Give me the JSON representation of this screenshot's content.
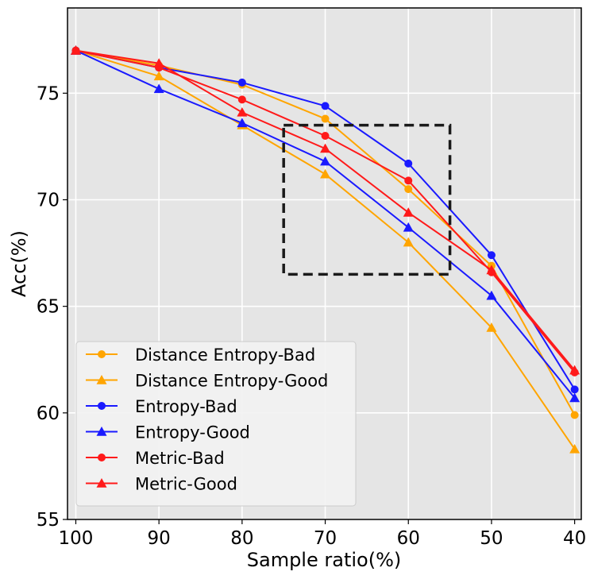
{
  "chart_data": {
    "type": "line",
    "title": "",
    "xlabel": "Sample ratio(%)",
    "ylabel": "Acc(%)",
    "x": [
      100,
      90,
      80,
      70,
      60,
      50,
      40
    ],
    "xlim": [
      101,
      39.2
    ],
    "ylim": [
      55,
      79
    ],
    "xticks": [
      100,
      90,
      80,
      70,
      60,
      50,
      40
    ],
    "yticks": [
      55,
      60,
      65,
      70,
      75
    ],
    "grid": true,
    "legend_position": "lower-left",
    "highlight_box": {
      "x_range": [
        75,
        55
      ],
      "y_range": [
        66.5,
        73.5
      ],
      "style": "dashed"
    },
    "series": [
      {
        "name": "Distance Entropy-Bad",
        "color": "#ffa500",
        "marker": "circle",
        "values": [
          77.0,
          76.3,
          75.4,
          73.8,
          70.5,
          66.9,
          59.9
        ]
      },
      {
        "name": "Distance Entropy-Good",
        "color": "#ffa500",
        "marker": "triangle",
        "values": [
          77.0,
          75.8,
          73.5,
          71.2,
          68.0,
          64.0,
          58.3
        ]
      },
      {
        "name": "Entropy-Bad",
        "color": "#1a1aff",
        "marker": "circle",
        "values": [
          77.0,
          76.2,
          75.5,
          74.4,
          71.7,
          67.4,
          61.1
        ]
      },
      {
        "name": "Entropy-Good",
        "color": "#1a1aff",
        "marker": "triangle",
        "values": [
          77.0,
          75.2,
          73.6,
          71.8,
          68.7,
          65.5,
          60.7
        ]
      },
      {
        "name": "Metric-Bad",
        "color": "#ff1a1a",
        "marker": "circle",
        "values": [
          77.0,
          76.2,
          74.7,
          73.0,
          70.9,
          66.6,
          61.9
        ]
      },
      {
        "name": "Metric-Good",
        "color": "#ff1a1a",
        "marker": "triangle",
        "values": [
          77.0,
          76.4,
          74.1,
          72.4,
          69.4,
          66.7,
          62.0
        ]
      }
    ]
  }
}
